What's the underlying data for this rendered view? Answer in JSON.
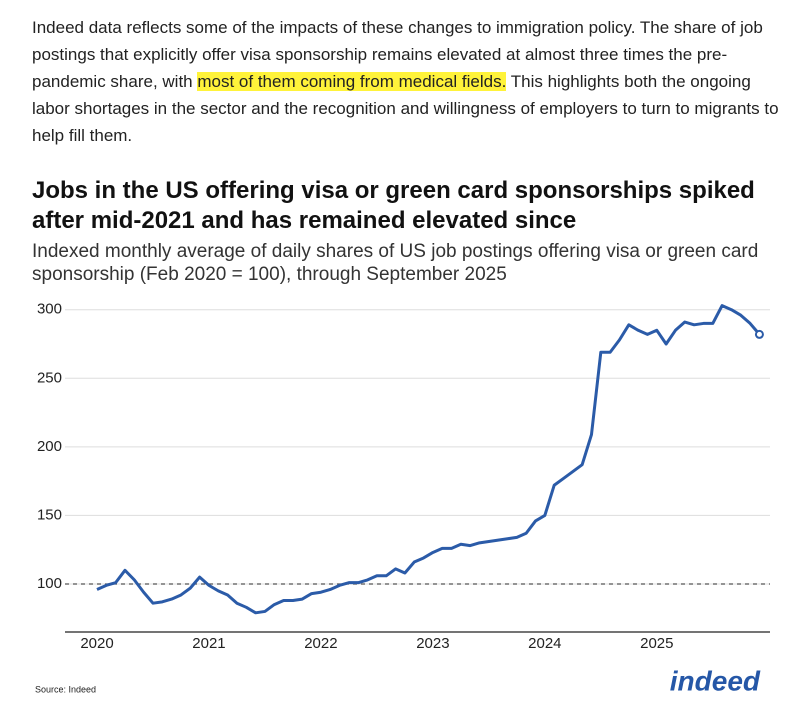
{
  "paragraph": {
    "before": "Indeed data reflects some of the impacts of these changes to immigration policy. The share of job postings that explicitly offer visa sponsorship remains elevated at almost three times the pre-pandemic share, with ",
    "highlight": "most of them coming from medical fields.",
    "after": " This highlights both the ongoing labor shortages in the sector and the recognition and willingness of employers to turn to migrants to help fill them."
  },
  "chart_data": {
    "type": "line",
    "title": "Jobs in the US offering visa or green card sponsorships spiked after mid-2021 and has remained elevated since",
    "subtitle": "Indexed monthly average of daily shares of US job postings offering visa or green card sponsorship (Feb 2020 = 100), through September 2025",
    "source": "Source: Indeed",
    "logo": "indeed",
    "categories": [
      "2020",
      null,
      null,
      null,
      null,
      null,
      null,
      null,
      null,
      null,
      null,
      null,
      "2021",
      null,
      null,
      null,
      null,
      null,
      null,
      null,
      null,
      null,
      null,
      null,
      "2022",
      null,
      null,
      null,
      null,
      null,
      null,
      null,
      null,
      null,
      null,
      null,
      "2023",
      null,
      null,
      null,
      null,
      null,
      null,
      null,
      null,
      null,
      null,
      null,
      "2024",
      null,
      null,
      null,
      null,
      null,
      null,
      null,
      null,
      null,
      null,
      null,
      "2025",
      null,
      null,
      null,
      null,
      null,
      null,
      null,
      null,
      null,
      null,
      null
    ],
    "series": [
      {
        "color": "#2b5ba8",
        "values": [
          96,
          99,
          101,
          110,
          103,
          94,
          86,
          87,
          89,
          92,
          97,
          105,
          99,
          95,
          92,
          86,
          83,
          79,
          80,
          85,
          88,
          88,
          89,
          93,
          94,
          96,
          99,
          101,
          101,
          103,
          106,
          106,
          111,
          108,
          116,
          119,
          123,
          126,
          126,
          129,
          128,
          130,
          131,
          132,
          133,
          134,
          137,
          146,
          150,
          172,
          177,
          182,
          187,
          209,
          269,
          269,
          278,
          289,
          285,
          282,
          285,
          275,
          285,
          291,
          289,
          290,
          290,
          303,
          300,
          296,
          290,
          282
        ]
      }
    ],
    "reference_line": 100,
    "ylim": [
      65,
      310
    ],
    "yticks": [
      100,
      150,
      200,
      250,
      300
    ],
    "grid": true
  }
}
